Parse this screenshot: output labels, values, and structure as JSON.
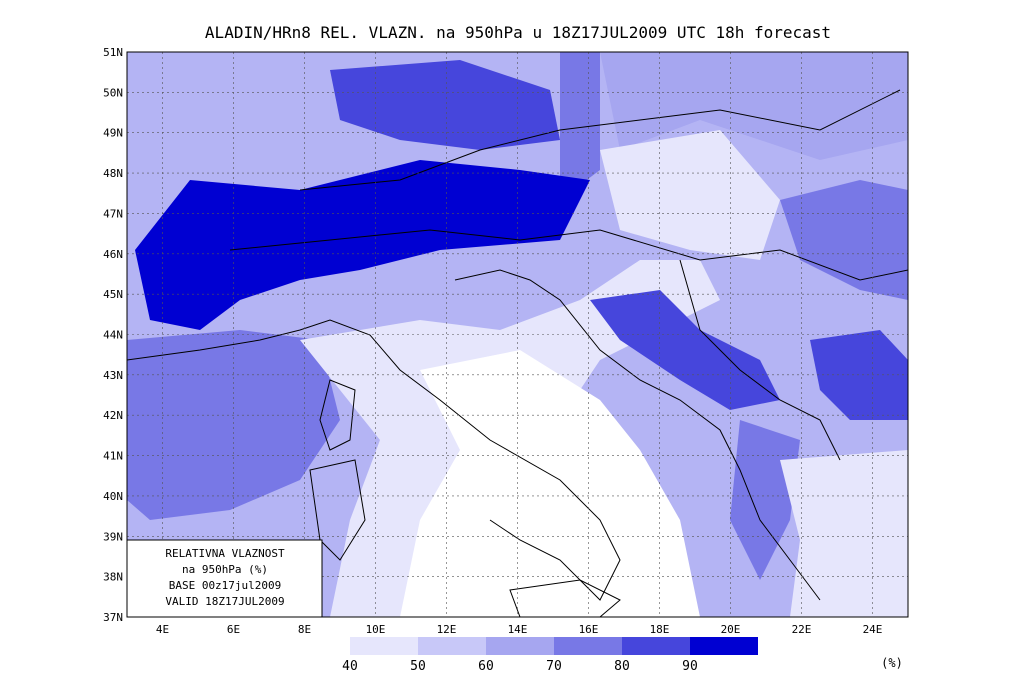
{
  "title": "ALADIN/HRn8 REL. VLAZN. na 950hPa u 18Z17JUL2009 UTC 18h forecast",
  "map": {
    "lat_labels": [
      "51N",
      "50N",
      "49N",
      "48N",
      "47N",
      "46N",
      "45N",
      "44N",
      "43N",
      "42N",
      "41N",
      "40N",
      "39N",
      "38N",
      "37N"
    ],
    "lon_labels": [
      "4E",
      "6E",
      "8E",
      "10E",
      "12E",
      "14E",
      "16E",
      "18E",
      "20E",
      "22E",
      "24E"
    ],
    "info_box": [
      "RELATIVNA VLAZNOST",
      "na 950hPa (%)",
      "BASE 00z17jul2009",
      "VALID 18Z17JUL2009"
    ]
  },
  "colorbar": {
    "labels": [
      "40",
      "50",
      "60",
      "70",
      "80",
      "90"
    ],
    "colors": [
      "#e6e6fc",
      "#c8c8f8",
      "#a6a6f0",
      "#7878e6",
      "#4646dc",
      "#0000d2"
    ],
    "unit": "(%)"
  }
}
